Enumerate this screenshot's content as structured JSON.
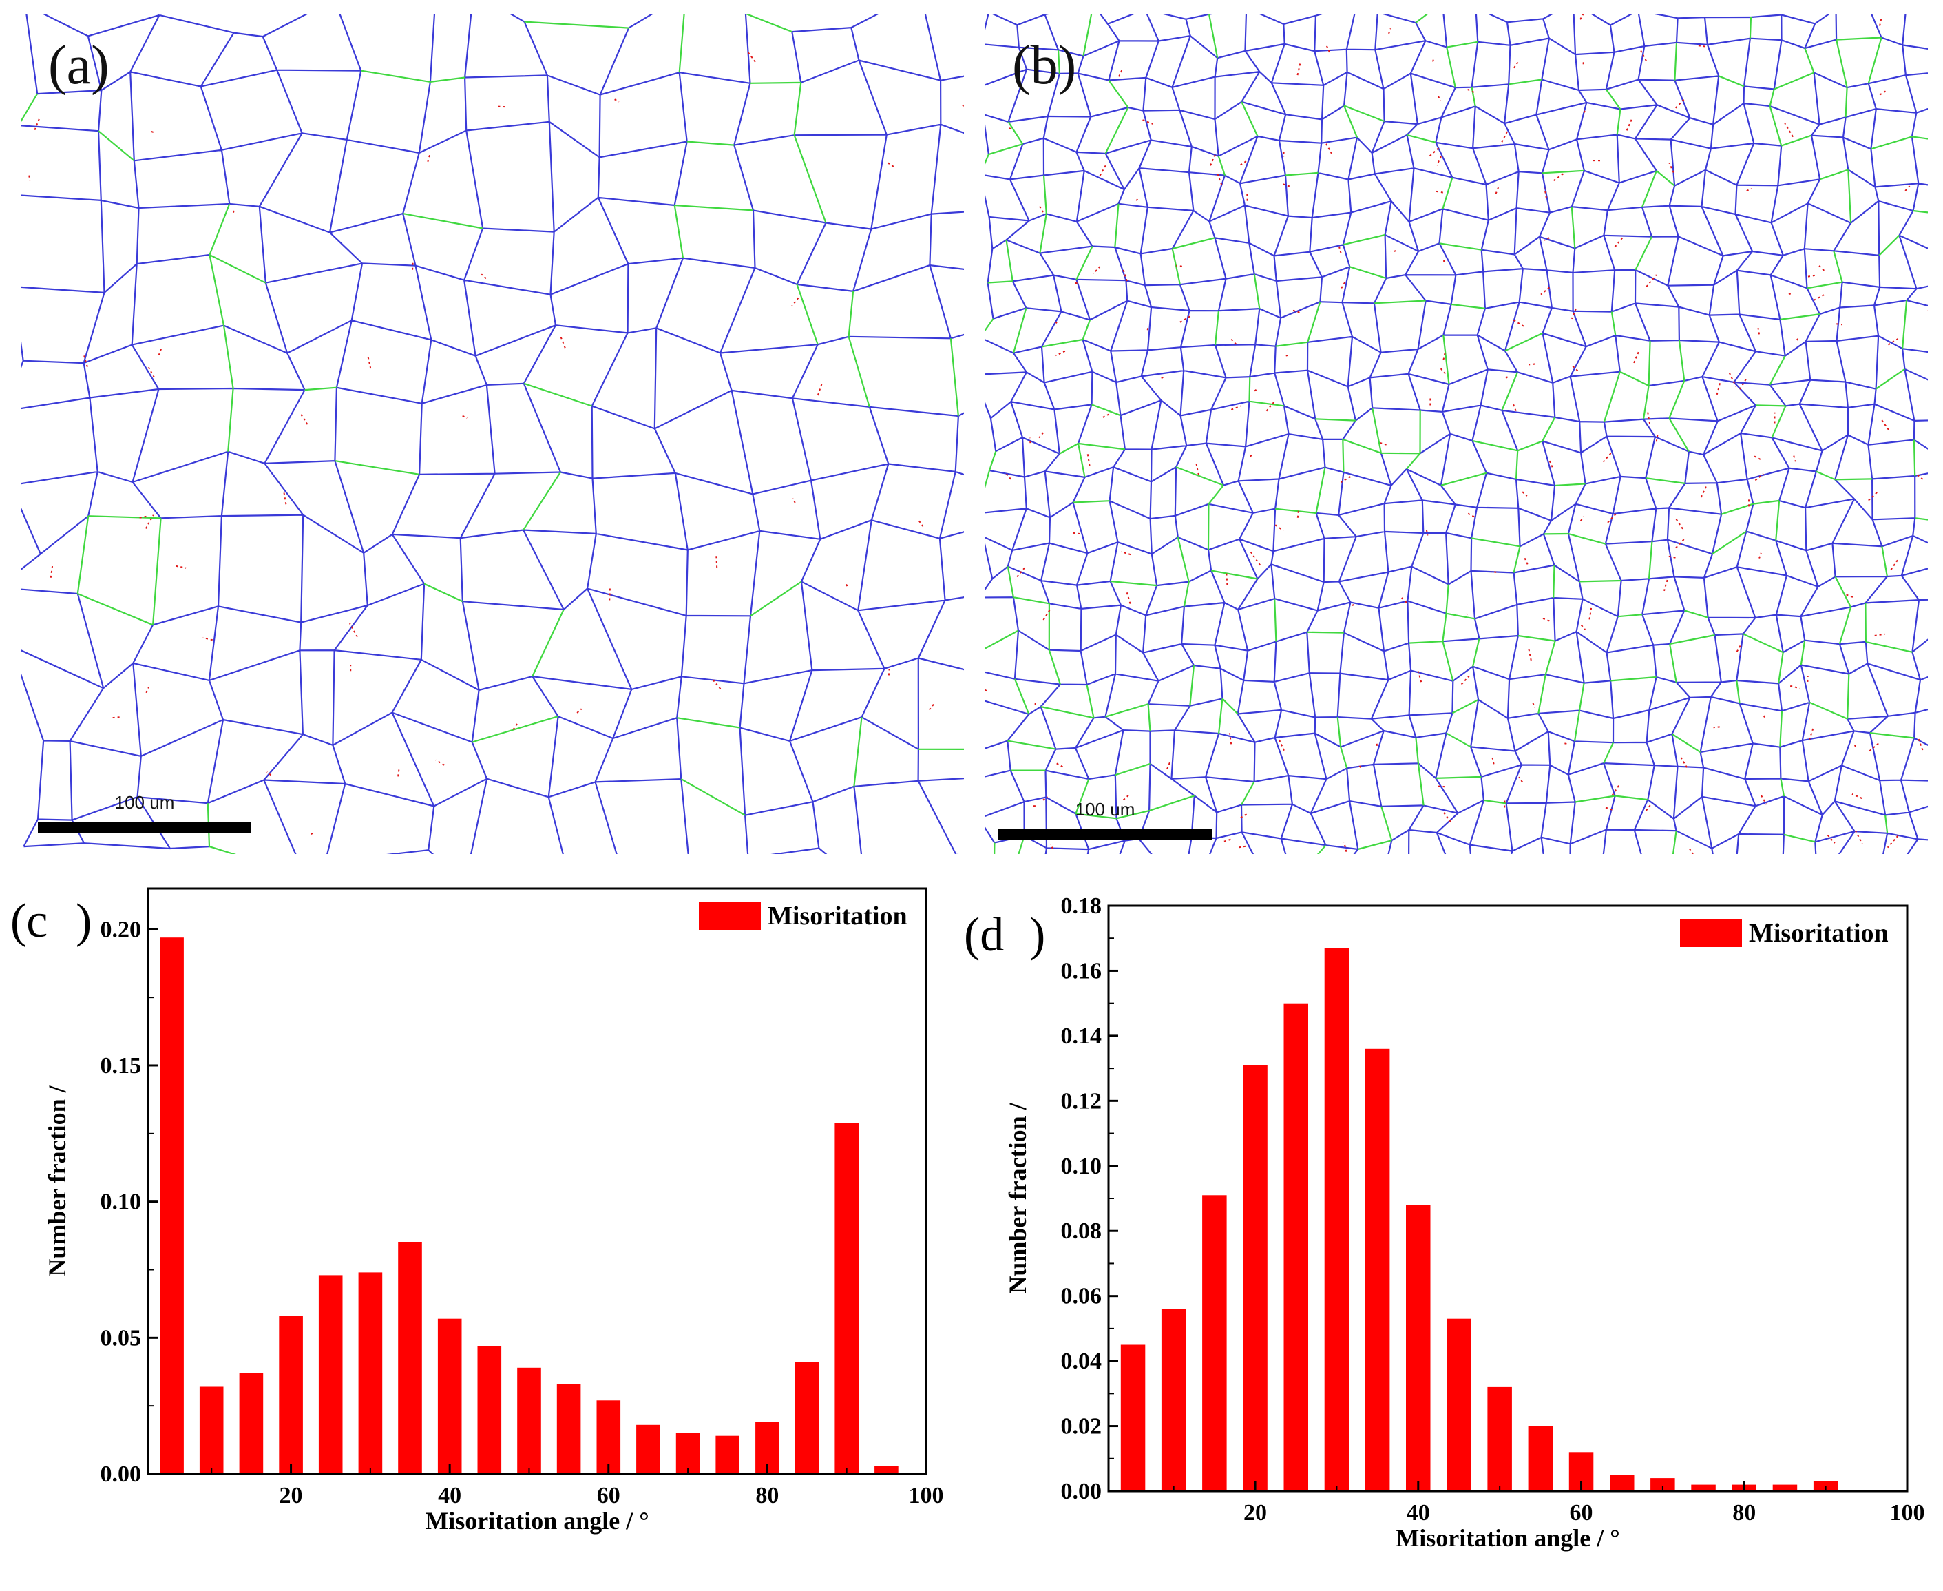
{
  "colors": {
    "grain_boundary": "#3a3ad8",
    "twin_boundary": "#40d840",
    "low_angle": "#e01818",
    "bar": "#ff0000",
    "axis": "#000000"
  },
  "maps": [
    {
      "label": "(a)",
      "scalebar": "100 um",
      "grains": "coarse"
    },
    {
      "label": "(b)",
      "scalebar": "100 um",
      "grains": "fine"
    }
  ],
  "chart_data": [
    {
      "type": "bar",
      "panel_label": "(c",
      "panel_label_close": ")",
      "xlabel": "Misoritation angle / °",
      "ylabel": "Number fraction /",
      "legend": "Misoritation",
      "legend_position": "top-right",
      "xlim": [
        2,
        100
      ],
      "ylim": [
        0,
        0.215
      ],
      "xticks": [
        20,
        40,
        60,
        80,
        100
      ],
      "yticks": [
        0.0,
        0.05,
        0.1,
        0.15,
        0.2
      ],
      "ytick_labels": [
        "0.00",
        "0.05",
        "0.10",
        "0.15",
        "0.20"
      ],
      "x": [
        5,
        10,
        15,
        20,
        25,
        30,
        35,
        40,
        45,
        50,
        55,
        60,
        65,
        70,
        75,
        80,
        85,
        90,
        95
      ],
      "values": [
        0.197,
        0.032,
        0.037,
        0.058,
        0.073,
        0.074,
        0.085,
        0.057,
        0.047,
        0.039,
        0.033,
        0.027,
        0.018,
        0.015,
        0.014,
        0.019,
        0.041,
        0.129,
        0.003
      ]
    },
    {
      "type": "bar",
      "panel_label": "(d",
      "panel_label_close": ")",
      "xlabel": "Misoritation angle / °",
      "ylabel": "Number fraction /",
      "legend": "Misoritation",
      "legend_position": "top-right",
      "xlim": [
        2,
        100
      ],
      "ylim": [
        0,
        0.18
      ],
      "xticks": [
        20,
        40,
        60,
        80,
        100
      ],
      "yticks": [
        0.0,
        0.02,
        0.04,
        0.06,
        0.08,
        0.1,
        0.12,
        0.14,
        0.16,
        0.18
      ],
      "ytick_labels": [
        "0.00",
        "0.02",
        "0.04",
        "0.06",
        "0.08",
        "0.10",
        "0.12",
        "0.14",
        "0.16",
        "0.18"
      ],
      "x": [
        5,
        10,
        15,
        20,
        25,
        30,
        35,
        40,
        45,
        50,
        55,
        60,
        65,
        70,
        75,
        80,
        85,
        90
      ],
      "values": [
        0.045,
        0.056,
        0.091,
        0.131,
        0.15,
        0.167,
        0.136,
        0.088,
        0.053,
        0.032,
        0.02,
        0.012,
        0.005,
        0.004,
        0.002,
        0.002,
        0.002,
        0.003
      ]
    }
  ]
}
